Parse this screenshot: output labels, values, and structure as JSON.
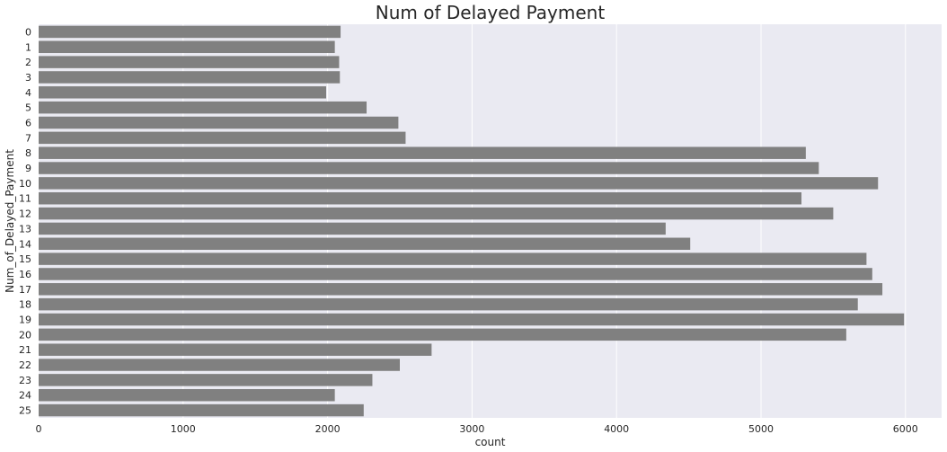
{
  "chart_data": {
    "type": "bar",
    "orientation": "horizontal",
    "title": "Num of Delayed Payment",
    "xlabel": "count",
    "ylabel": "Num_of_Delayed_Payment",
    "xlim": [
      0,
      6250
    ],
    "grid": true,
    "categories": [
      "0",
      "1",
      "2",
      "3",
      "4",
      "5",
      "6",
      "7",
      "8",
      "9",
      "10",
      "11",
      "12",
      "13",
      "14",
      "15",
      "16",
      "17",
      "18",
      "19",
      "20",
      "21",
      "22",
      "23",
      "24",
      "25"
    ],
    "values": [
      2090,
      2050,
      2080,
      2085,
      1990,
      2270,
      2490,
      2540,
      5310,
      5400,
      5810,
      5280,
      5500,
      4340,
      4510,
      5730,
      5770,
      5840,
      5670,
      5990,
      5590,
      2720,
      2500,
      2310,
      2050,
      2250
    ],
    "x_ticks": [
      "0",
      "1000",
      "2000",
      "3000",
      "4000",
      "5000",
      "6000"
    ],
    "colors": {
      "plot_background": "#eaeaf2",
      "bar": "#808080",
      "grid": "#ffffff",
      "text": "#262626"
    }
  }
}
